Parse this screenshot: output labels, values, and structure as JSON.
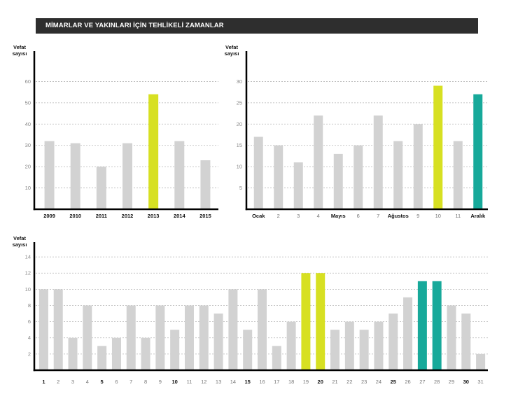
{
  "title": "MİMARLAR VE YAKINLARI İÇİN TEHLİKELİ ZAMANLAR",
  "colors": {
    "default": "#d2d2d2",
    "yellow": "#d7e022",
    "teal": "#17a99a",
    "axis": "#000000",
    "banner": "#2e2e2e"
  },
  "chart_data": [
    {
      "type": "bar",
      "ylabel": "Vefat sayısı",
      "categories": [
        "2009",
        "2010",
        "2011",
        "2012",
        "2013",
        "2014",
        "2015"
      ],
      "values": [
        32,
        31,
        20,
        31,
        54,
        32,
        23
      ],
      "bar_colors": [
        "default",
        "default",
        "default",
        "default",
        "yellow",
        "default",
        "default"
      ],
      "bold_categories": [
        "2009",
        "2010",
        "2011",
        "2012",
        "2013",
        "2014",
        "2015"
      ],
      "yticks": [
        10,
        20,
        30,
        40,
        50,
        60
      ],
      "ylim": [
        0,
        70
      ],
      "grid": true
    },
    {
      "type": "bar",
      "ylabel": "Vefat sayısı",
      "categories": [
        "Ocak",
        "2",
        "3",
        "4",
        "Mayıs",
        "6",
        "7",
        "Ağustos",
        "9",
        "10",
        "11",
        "Aralık"
      ],
      "values": [
        17,
        15,
        11,
        22,
        13,
        15,
        22,
        16,
        20,
        29,
        16,
        27
      ],
      "bar_colors": [
        "default",
        "default",
        "default",
        "default",
        "default",
        "default",
        "default",
        "default",
        "default",
        "yellow",
        "default",
        "teal"
      ],
      "bold_categories": [
        "Ocak",
        "Mayıs",
        "Ağustos",
        "Aralık"
      ],
      "yticks": [
        5,
        10,
        15,
        20,
        25,
        30
      ],
      "ylim": [
        0,
        35
      ],
      "grid": true
    },
    {
      "type": "bar",
      "ylabel": "Vefat sayısı",
      "categories": [
        "1",
        "2",
        "3",
        "4",
        "5",
        "6",
        "7",
        "8",
        "9",
        "10",
        "11",
        "12",
        "13",
        "14",
        "15",
        "16",
        "17",
        "18",
        "19",
        "20",
        "21",
        "22",
        "23",
        "24",
        "25",
        "26",
        "27",
        "28",
        "29",
        "30",
        "31"
      ],
      "values": [
        10,
        10,
        4,
        8,
        3,
        4,
        8,
        4,
        8,
        5,
        8,
        8,
        7,
        10,
        5,
        10,
        3,
        6,
        12,
        12,
        5,
        6,
        5,
        6,
        7,
        9,
        11,
        11,
        8,
        7,
        2
      ],
      "bar_colors": [
        "default",
        "default",
        "default",
        "default",
        "default",
        "default",
        "default",
        "default",
        "default",
        "default",
        "default",
        "default",
        "default",
        "default",
        "default",
        "default",
        "default",
        "default",
        "yellow",
        "yellow",
        "default",
        "default",
        "default",
        "default",
        "default",
        "default",
        "teal",
        "teal",
        "default",
        "default",
        "default"
      ],
      "bold_categories": [
        "1",
        "5",
        "10",
        "15",
        "20",
        "25",
        "30"
      ],
      "yticks": [
        2,
        4,
        6,
        8,
        10,
        12,
        14
      ],
      "ylim": [
        0,
        14.7
      ],
      "grid": true
    }
  ]
}
